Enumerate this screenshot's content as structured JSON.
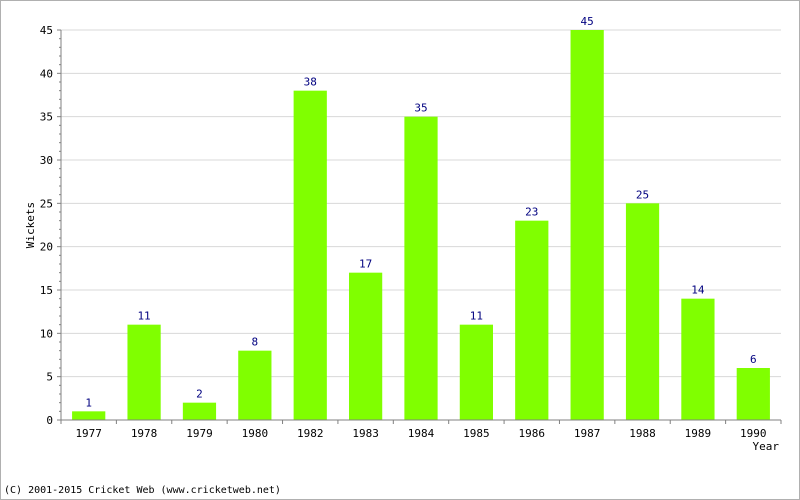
{
  "chart_data": {
    "type": "bar",
    "categories": [
      "1977",
      "1978",
      "1979",
      "1980",
      "1982",
      "1983",
      "1984",
      "1985",
      "1986",
      "1987",
      "1988",
      "1989",
      "1990"
    ],
    "values": [
      1,
      11,
      2,
      8,
      38,
      17,
      35,
      11,
      23,
      45,
      25,
      14,
      6
    ],
    "xlabel": "Year",
    "ylabel": "Wickets",
    "ylim": [
      0,
      45
    ],
    "yticks": [
      0,
      5,
      10,
      15,
      20,
      25,
      30,
      35,
      40,
      45
    ],
    "grid": true,
    "data_labels": true,
    "bar_color": "#80ff00",
    "label_color": "#000080"
  },
  "footer": {
    "copyright": "(C) 2001-2015 Cricket Web (www.cricketweb.net)"
  }
}
